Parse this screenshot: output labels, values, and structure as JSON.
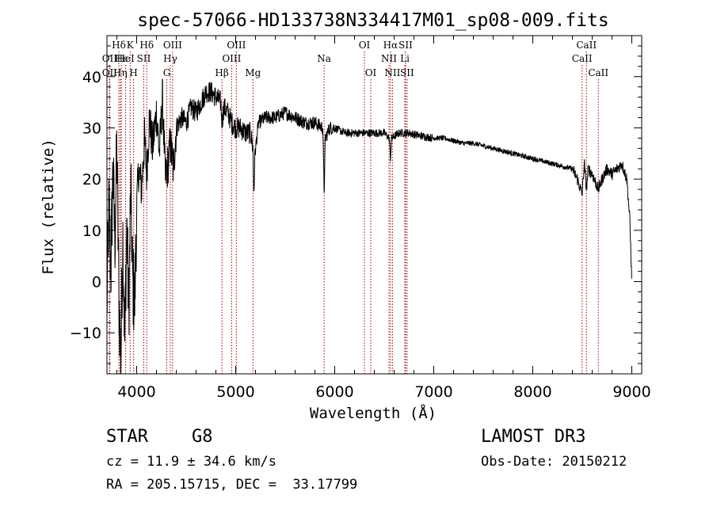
{
  "chart_data": {
    "type": "line",
    "title": "spec-57066-HD133738N334417M01_sp08-009.fits",
    "xlabel": "Wavelength (Å)",
    "ylabel": "Flux (relative)",
    "xlim": [
      3700,
      9100
    ],
    "ylim": [
      -18,
      48
    ],
    "xticks": [
      4000,
      5000,
      6000,
      7000,
      8000,
      9000
    ],
    "yticks": [
      -10,
      0,
      10,
      20,
      30,
      40
    ],
    "x_minor_step": 200,
    "y_minor_step": 2,
    "spectrum_anchors": [
      [
        3700,
        -5
      ],
      [
        3720,
        15
      ],
      [
        3740,
        2
      ],
      [
        3760,
        22
      ],
      [
        3780,
        8
      ],
      [
        3800,
        26
      ],
      [
        3820,
        -2
      ],
      [
        3840,
        -16
      ],
      [
        3860,
        10
      ],
      [
        3880,
        -12
      ],
      [
        3900,
        12
      ],
      [
        3920,
        -6
      ],
      [
        3940,
        18
      ],
      [
        3960,
        0
      ],
      [
        3980,
        -4
      ],
      [
        4000,
        14
      ],
      [
        4020,
        22
      ],
      [
        4050,
        18
      ],
      [
        4080,
        28
      ],
      [
        4100,
        21
      ],
      [
        4130,
        32
      ],
      [
        4160,
        26
      ],
      [
        4200,
        33
      ],
      [
        4230,
        25
      ],
      [
        4260,
        36
      ],
      [
        4290,
        20
      ],
      [
        4310,
        22
      ],
      [
        4340,
        27
      ],
      [
        4370,
        22
      ],
      [
        4400,
        30
      ],
      [
        4450,
        32
      ],
      [
        4500,
        31
      ],
      [
        4550,
        34
      ],
      [
        4600,
        33
      ],
      [
        4650,
        35
      ],
      [
        4700,
        37
      ],
      [
        4750,
        37
      ],
      [
        4800,
        36
      ],
      [
        4850,
        35
      ],
      [
        4861,
        31
      ],
      [
        4880,
        34
      ],
      [
        4920,
        33
      ],
      [
        4960,
        31
      ],
      [
        5000,
        30
      ],
      [
        5050,
        30
      ],
      [
        5100,
        29
      ],
      [
        5150,
        29
      ],
      [
        5175,
        26
      ],
      [
        5183,
        17
      ],
      [
        5195,
        25
      ],
      [
        5230,
        31
      ],
      [
        5300,
        32
      ],
      [
        5400,
        32
      ],
      [
        5500,
        33
      ],
      [
        5600,
        32
      ],
      [
        5700,
        31
      ],
      [
        5800,
        31
      ],
      [
        5880,
        30
      ],
      [
        5893,
        17
      ],
      [
        5905,
        28
      ],
      [
        5950,
        30
      ],
      [
        6000,
        30
      ],
      [
        6100,
        29
      ],
      [
        6200,
        29
      ],
      [
        6300,
        29
      ],
      [
        6400,
        29
      ],
      [
        6500,
        29
      ],
      [
        6550,
        28
      ],
      [
        6563,
        24
      ],
      [
        6575,
        28
      ],
      [
        6650,
        29
      ],
      [
        6750,
        29
      ],
      [
        6850,
        28.5
      ],
      [
        7000,
        28
      ],
      [
        7100,
        28
      ],
      [
        7200,
        27.5
      ],
      [
        7300,
        27
      ],
      [
        7400,
        27
      ],
      [
        7500,
        26.5
      ],
      [
        7600,
        26
      ],
      [
        7700,
        25.5
      ],
      [
        7800,
        25
      ],
      [
        7900,
        24.5
      ],
      [
        8000,
        24
      ],
      [
        8100,
        23.5
      ],
      [
        8200,
        23
      ],
      [
        8300,
        22.5
      ],
      [
        8400,
        22
      ],
      [
        8450,
        20
      ],
      [
        8498,
        17
      ],
      [
        8520,
        23
      ],
      [
        8542,
        18
      ],
      [
        8560,
        22
      ],
      [
        8600,
        21
      ],
      [
        8662,
        18
      ],
      [
        8700,
        20
      ],
      [
        8750,
        22
      ],
      [
        8800,
        21
      ],
      [
        8850,
        22
      ],
      [
        8900,
        23
      ],
      [
        8950,
        20
      ],
      [
        8980,
        12
      ],
      [
        9000,
        0
      ]
    ],
    "lines": [
      {
        "label": "Hδ",
        "x": 3820,
        "row": 0
      },
      {
        "label": "OII",
        "x": 3727,
        "row": 1
      },
      {
        "label": "OII",
        "x": 3727,
        "row": 2
      },
      {
        "label": "Hε",
        "x": 3845,
        "row": 1
      },
      {
        "label": "Hη",
        "x": 3835,
        "row": 2
      },
      {
        "label": "K",
        "x": 3934,
        "row": 0
      },
      {
        "label": "HeI",
        "x": 3889,
        "row": 1
      },
      {
        "label": "H",
        "x": 3969,
        "row": 2
      },
      {
        "label": "SII",
        "x": 4072,
        "row": 1
      },
      {
        "label": "Hδ",
        "x": 4102,
        "row": 0
      },
      {
        "label": "OIII",
        "x": 4363,
        "row": 0
      },
      {
        "label": "Hγ",
        "x": 4340,
        "row": 1
      },
      {
        "label": "G",
        "x": 4304,
        "row": 2
      },
      {
        "label": "Hβ",
        "x": 4861,
        "row": 2
      },
      {
        "label": "OIII",
        "x": 5007,
        "row": 0
      },
      {
        "label": "OIII",
        "x": 4959,
        "row": 1
      },
      {
        "label": "Mg",
        "x": 5175,
        "row": 2
      },
      {
        "label": "Na",
        "x": 5893,
        "row": 1
      },
      {
        "label": "OI",
        "x": 6300,
        "row": 0
      },
      {
        "label": "OI",
        "x": 6364,
        "row": 2
      },
      {
        "label": "Hα",
        "x": 6563,
        "row": 0
      },
      {
        "label": "SII",
        "x": 6716,
        "row": 0
      },
      {
        "label": "NII",
        "x": 6548,
        "row": 1
      },
      {
        "label": "Li",
        "x": 6708,
        "row": 1
      },
      {
        "label": "NII",
        "x": 6583,
        "row": 2
      },
      {
        "label": "SII",
        "x": 6731,
        "row": 2
      },
      {
        "label": "CaII",
        "x": 8542,
        "row": 0
      },
      {
        "label": "CaII",
        "x": 8498,
        "row": 1
      },
      {
        "label": "CaII",
        "x": 8662,
        "row": 2
      }
    ],
    "line_color": "#000000",
    "marker_color": "#a00000"
  },
  "info": {
    "object_class": "STAR",
    "subclass": "G8",
    "survey": "LAMOST DR3",
    "redshift": "cz = 11.9 ± 34.6 km/s",
    "obs_date": "Obs-Date: 20150212",
    "coords": "RA = 205.15715, DEC =  33.17799"
  }
}
